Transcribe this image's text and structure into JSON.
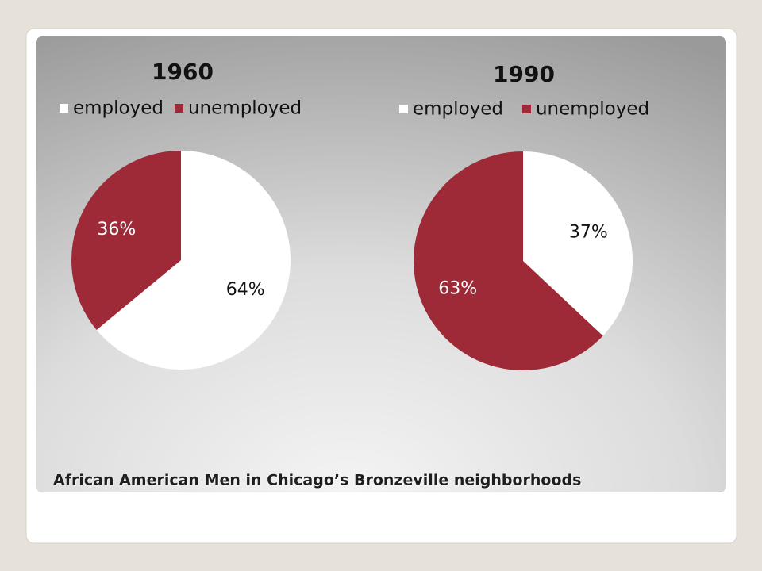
{
  "chart_data": [
    {
      "type": "pie",
      "title": "1960",
      "categories": [
        "employed",
        "unemployed"
      ],
      "values": [
        64,
        36
      ],
      "value_labels": [
        "64%",
        "36%"
      ],
      "colors": [
        "#ffffff",
        "#9e2a38"
      ]
    },
    {
      "type": "pie",
      "title": "1990",
      "categories": [
        "employed",
        "unemployed"
      ],
      "values": [
        37,
        63
      ],
      "value_labels": [
        "37%",
        "63%"
      ],
      "colors": [
        "#ffffff",
        "#9e2a38"
      ]
    }
  ],
  "caption": "African American Men in Chicago’s Bronzeville neighborhoods"
}
